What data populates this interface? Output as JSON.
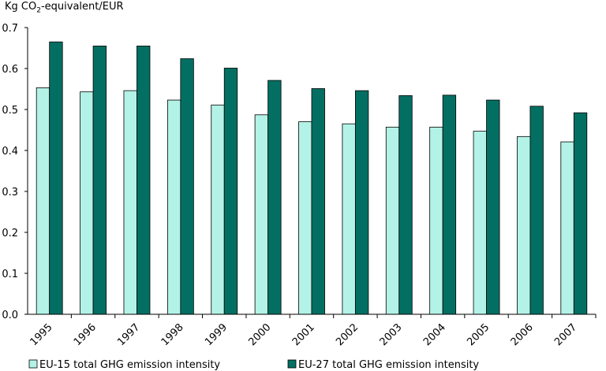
{
  "chart_data": {
    "type": "bar",
    "ylabel_prefix": "Kg CO",
    "ylabel_sub": "2",
    "ylabel_suffix": "-equivalent/EUR",
    "categories": [
      "1995",
      "1996",
      "1997",
      "1998",
      "1999",
      "2000",
      "2001",
      "2002",
      "2003",
      "2004",
      "2005",
      "2006",
      "2007"
    ],
    "series": [
      {
        "name": "EU-15 total GHG emission intensity",
        "color": "#b3f2e6",
        "values": [
          0.553,
          0.543,
          0.546,
          0.523,
          0.511,
          0.487,
          0.47,
          0.465,
          0.457,
          0.457,
          0.447,
          0.434,
          0.421
        ]
      },
      {
        "name": "EU-27 total GHG emission intensity",
        "color": "#036f62",
        "values": [
          0.665,
          0.655,
          0.655,
          0.624,
          0.601,
          0.571,
          0.551,
          0.546,
          0.534,
          0.535,
          0.523,
          0.508,
          0.492
        ]
      }
    ],
    "yticks": [
      "0.0",
      "0.1",
      "0.2",
      "0.3",
      "0.4",
      "0.5",
      "0.6",
      "0.7"
    ],
    "ylim": [
      0,
      0.7
    ],
    "grid": false,
    "legend_position": "bottom"
  }
}
